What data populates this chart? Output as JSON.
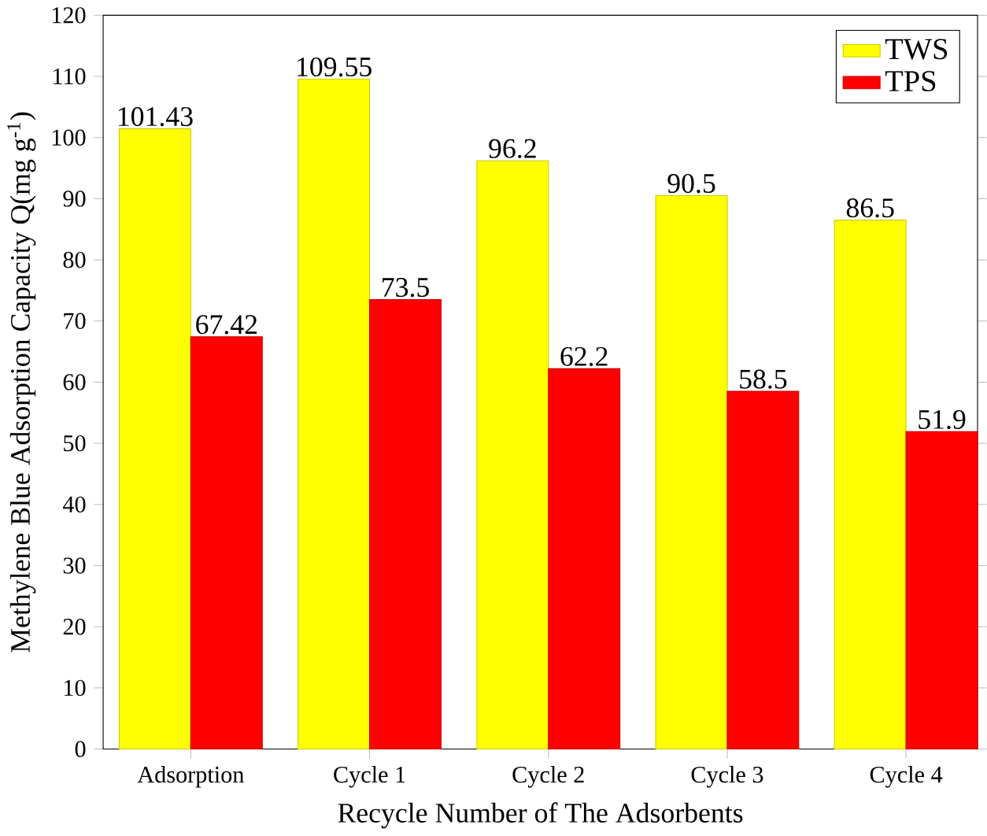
{
  "chart_data": {
    "type": "bar",
    "xlabel": "Recycle Number of The Adsorbents",
    "ylabel": "Methylene Blue Adsorption Capacity Q(mg g$^{-1}$)",
    "categories": [
      "Adsorption",
      "Cycle 1",
      "Cycle 2",
      "Cycle 3",
      "Cycle 4"
    ],
    "series": [
      {
        "name": "TWS",
        "color": "#ffff00",
        "values": [
          101.43,
          109.55,
          96.2,
          90.5,
          86.5
        ]
      },
      {
        "name": "TPS",
        "color": "#ff0000",
        "values": [
          67.42,
          73.5,
          62.2,
          58.5,
          51.9
        ]
      }
    ],
    "ylim": [
      0,
      120
    ],
    "yticks": [
      0,
      10,
      20,
      30,
      40,
      50,
      60,
      70,
      80,
      90,
      100,
      110,
      120
    ],
    "data_labels": true,
    "legend": "top right",
    "grid": false
  }
}
